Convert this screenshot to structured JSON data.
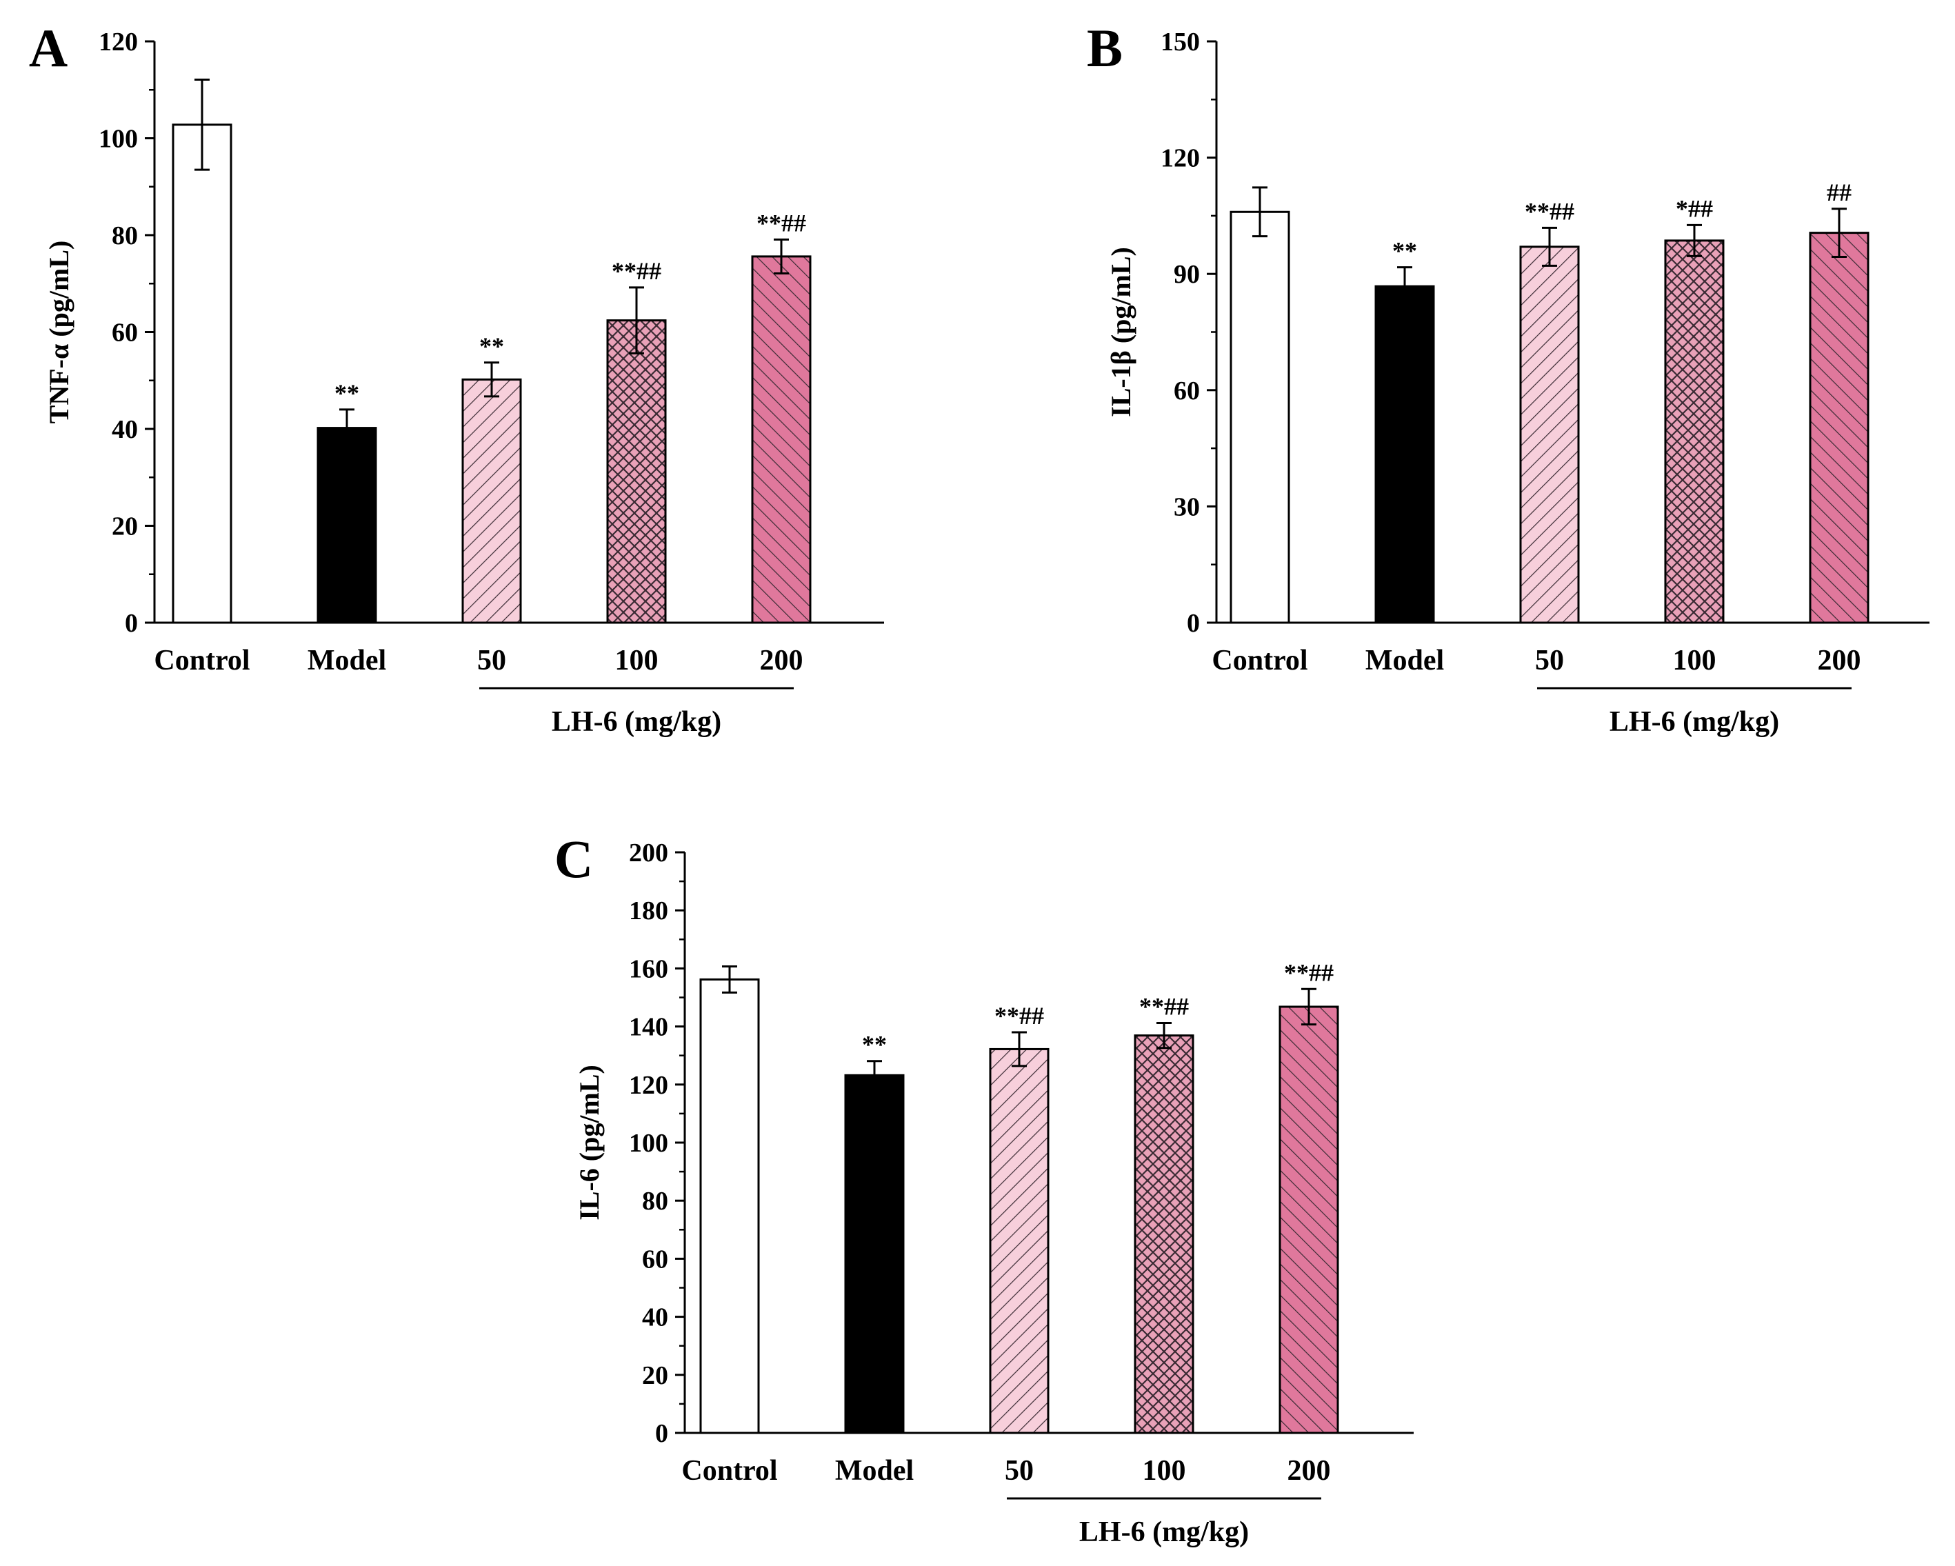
{
  "chart_data": [
    {
      "panel": "A",
      "type": "bar",
      "ylabel": "TNF-α (pg/mL)",
      "ylim": [
        0,
        120
      ],
      "yticks": [
        0,
        20,
        40,
        60,
        80,
        100,
        120
      ],
      "categories": [
        "Control",
        "Model",
        "50",
        "100",
        "200"
      ],
      "group_label": "LH-6 (mg/kg)",
      "values": [
        102.8,
        40.2,
        50.2,
        62.4,
        75.6
      ],
      "errors": [
        9.3,
        3.8,
        3.5,
        6.8,
        3.5
      ],
      "annotations": [
        "",
        "**",
        "**",
        "**##",
        "**##"
      ]
    },
    {
      "panel": "B",
      "type": "bar",
      "ylabel": "IL-1β (pg/mL)",
      "ylim": [
        0,
        150
      ],
      "yticks": [
        0,
        30,
        60,
        90,
        120,
        150
      ],
      "categories": [
        "Control",
        "Model",
        "50",
        "100",
        "200"
      ],
      "group_label": "LH-6 (mg/kg)",
      "values": [
        106.0,
        86.8,
        97.0,
        98.6,
        100.6
      ],
      "errors": [
        6.3,
        4.9,
        4.9,
        4.0,
        6.2
      ],
      "annotations": [
        "",
        "**",
        "**##",
        "*##",
        "##"
      ]
    },
    {
      "panel": "C",
      "type": "bar",
      "ylabel": "IL-6 (pg/mL)",
      "ylim": [
        0,
        200
      ],
      "yticks": [
        0,
        20,
        40,
        60,
        80,
        100,
        120,
        140,
        160,
        180,
        200
      ],
      "categories": [
        "Control",
        "Model",
        "50",
        "100",
        "200"
      ],
      "group_label": "LH-6 (mg/kg)",
      "values": [
        156.2,
        123.2,
        132.2,
        136.9,
        146.8
      ],
      "errors": [
        4.5,
        4.9,
        5.8,
        4.3,
        6.1
      ],
      "annotations": [
        "",
        "**",
        "**##",
        "**##",
        "**##"
      ]
    }
  ],
  "colors": {
    "control": "#ffffff",
    "model": "#000000",
    "dose50": "#f7cfdb",
    "dose100": "#e9a1b8",
    "dose200": "#e0789c",
    "hatch": "#3a2a33",
    "outline": "#000000"
  }
}
